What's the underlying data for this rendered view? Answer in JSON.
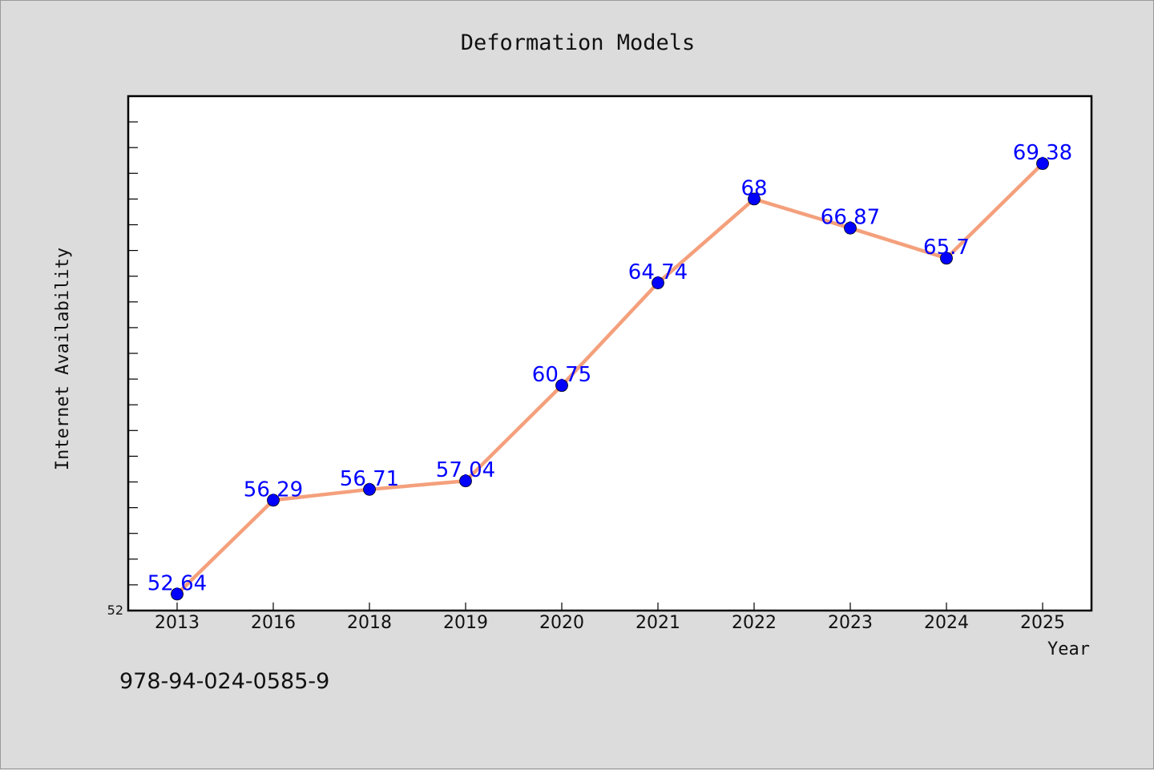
{
  "chart_data": {
    "type": "line",
    "title": "Deformation Models",
    "xlabel": "Year",
    "ylabel": "Internet Availability",
    "categories": [
      "2013",
      "2016",
      "2018",
      "2019",
      "2020",
      "2021",
      "2022",
      "2023",
      "2024",
      "2025"
    ],
    "series": [
      {
        "values": [
          52.64,
          56.29,
          56.71,
          57.04,
          60.75,
          64.74,
          68,
          66.87,
          65.7,
          69.38
        ],
        "color": "#f4a07c",
        "marker_color": "#0000ff"
      }
    ],
    "ylim": [
      52,
      72
    ],
    "ytick_labels": [
      {
        "value": 52,
        "label": "52"
      }
    ],
    "data_labels": [
      "52.64",
      "56.29",
      "56.71",
      "57.04",
      "60.75",
      "64.74",
      "68",
      "66.87",
      "65.7",
      "69.38"
    ],
    "data_label_color": "#0000ff",
    "grid": false,
    "legend": "none"
  },
  "footer": {
    "code": "978-94-024-0585-9"
  }
}
